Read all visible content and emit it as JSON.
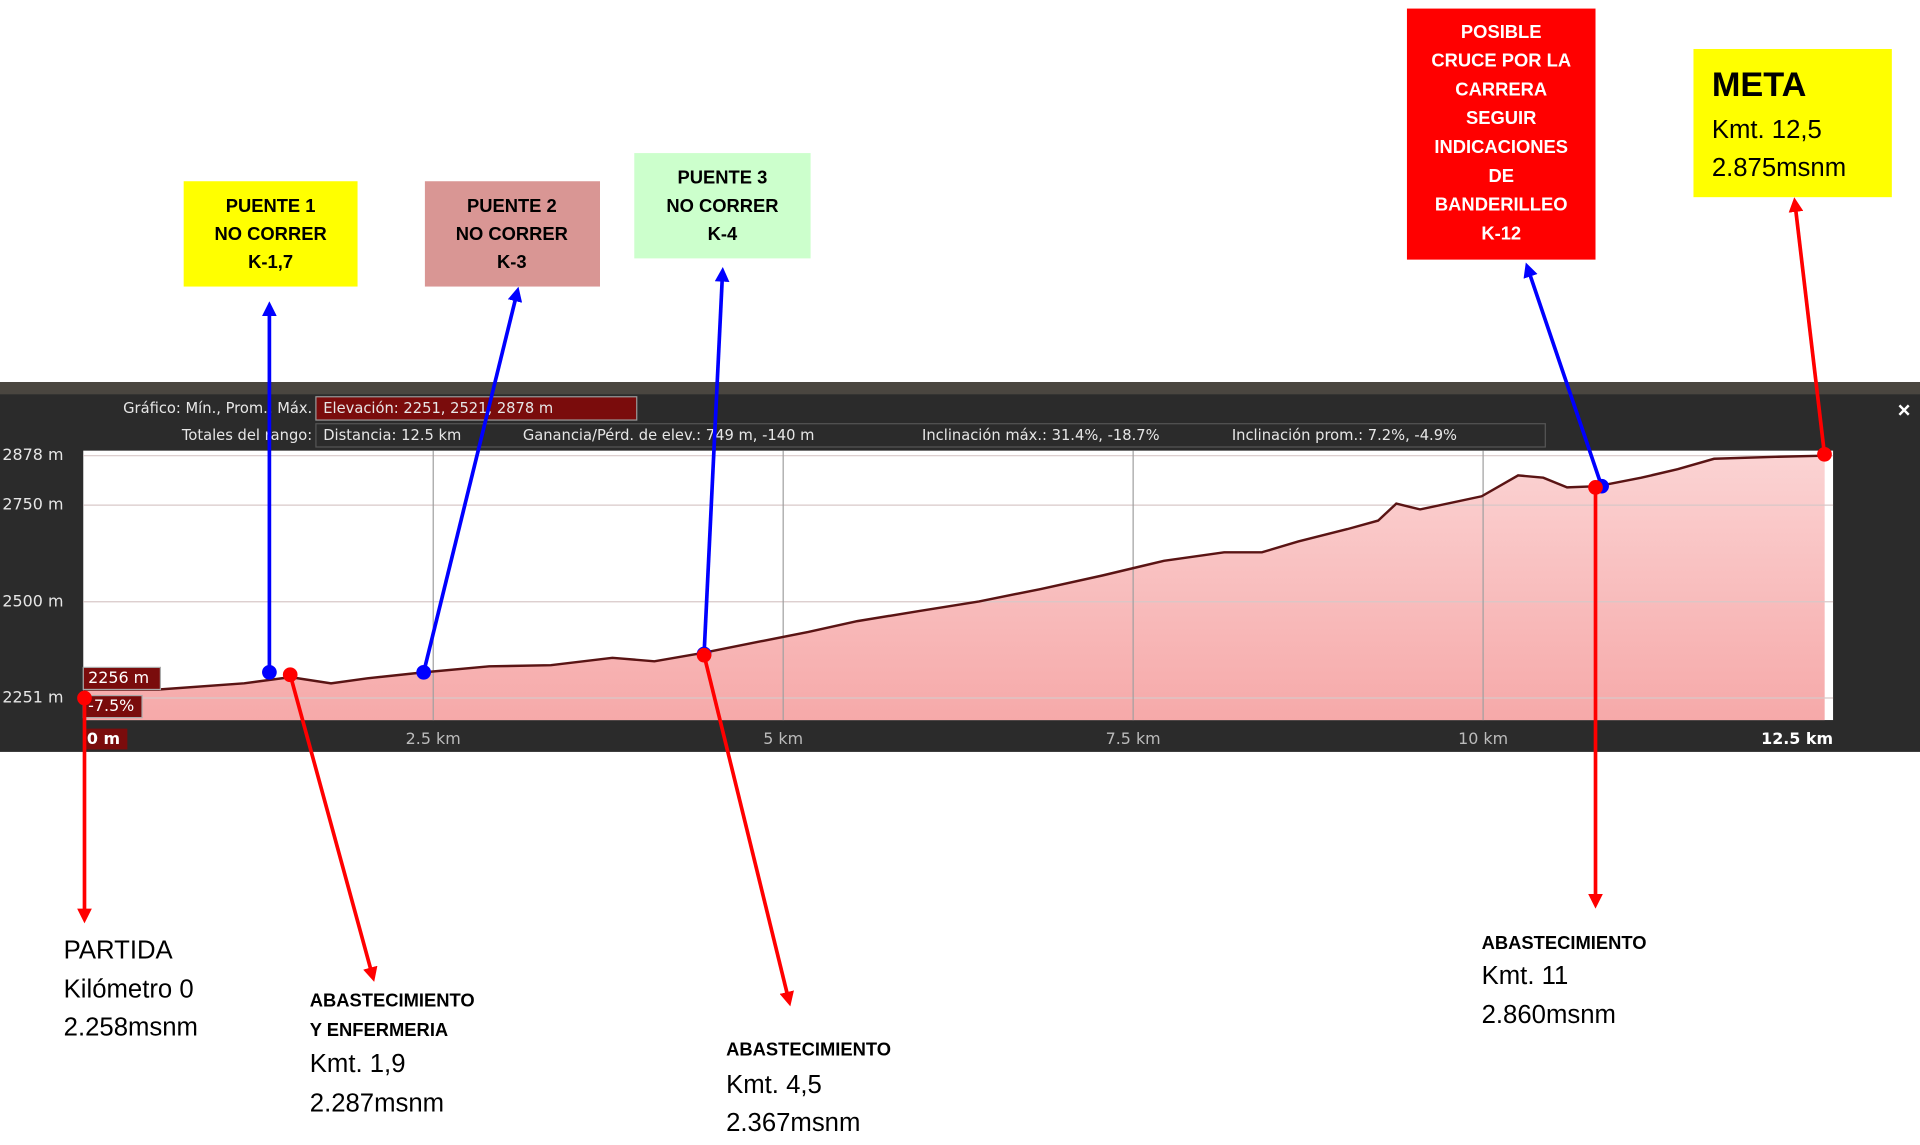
{
  "chart_data": {
    "type": "area",
    "summary_label": "Gráfico: Mín., Prom., Máx.",
    "elevation": "Elevación: 2251, 2521, 2878 m",
    "range_label": "Totales del rango:",
    "distance": "Distancia: 12.5 km",
    "gain": "Ganancia/Pérd. de elev.: 749 m, -140 m",
    "max_slope": "Inclinación máx.: 31.4%, -18.7%",
    "avg_slope": "Inclinación prom.: 7.2%, -4.9%",
    "cursor_elevation": "2256 m",
    "cursor_slope": "-7.5%",
    "close": "×",
    "x": [
      0,
      0.54,
      1.15,
      1.48,
      1.77,
      2.03,
      2.42,
      2.9,
      3.34,
      3.78,
      4.08,
      4.43,
      4.83,
      5.18,
      5.53,
      5.97,
      6.4,
      6.84,
      7.28,
      7.72,
      8.15,
      8.42,
      8.68,
      9.03,
      9.25,
      9.38,
      9.55,
      9.99,
      10.25,
      10.43,
      10.6,
      10.82,
      11.13,
      11.39,
      11.65,
      12.09,
      12.44
    ],
    "values": [
      2273,
      2273,
      2289,
      2305,
      2289,
      2302,
      2317,
      2333,
      2336,
      2355,
      2346,
      2368,
      2397,
      2422,
      2450,
      2476,
      2501,
      2533,
      2568,
      2606,
      2628,
      2628,
      2656,
      2688,
      2710,
      2754,
      2739,
      2773,
      2827,
      2821,
      2796,
      2799,
      2821,
      2843,
      2870,
      2875,
      2878
    ],
    "color": "#5a1414",
    "xlim": [
      0,
      12.5
    ],
    "ylim": [
      2194,
      2891
    ],
    "xticks": [
      {
        "value": 0,
        "label": "0 m"
      },
      {
        "value": 2.5,
        "label": "2.5 km"
      },
      {
        "value": 5,
        "label": "5 km"
      },
      {
        "value": 7.5,
        "label": "7.5 km"
      },
      {
        "value": 10,
        "label": "10 km"
      },
      {
        "value": 12.5,
        "label": "12.5 km"
      }
    ],
    "yticks": [
      {
        "value": 2251,
        "label": "2251 m"
      },
      {
        "value": 2500,
        "label": "2500 m"
      },
      {
        "value": 2750,
        "label": "2750 m"
      },
      {
        "value": 2878,
        "label": "2878 m"
      }
    ],
    "grid": true,
    "annotations": [
      {
        "lines": [
          "PUENTE 1",
          "NO CORRER",
          "K-1,7"
        ]
      },
      {
        "lines": [
          "PUENTE 2",
          "NO CORRER",
          "K-3"
        ]
      },
      {
        "lines": [
          "PUENTE 3",
          "NO CORRER",
          "K-4"
        ]
      },
      {
        "lines": [
          "POSIBLE",
          "CRUCE POR LA",
          "CARRERA",
          "SEGUIR",
          "INDICACIONES",
          "DE",
          "BANDERILLEO",
          "K-12"
        ]
      },
      {
        "lines": [
          "META",
          "Kmt.  12,5",
          "2.875msnm"
        ]
      },
      {
        "lines": [
          "PARTIDA",
          "Kilómetro 0",
          "2.258msnm"
        ]
      },
      {
        "lines": [
          "ABASTECIMIENTO",
          "Y ENFERMERIA",
          "Kmt.  1,9",
          "2.287msnm"
        ]
      },
      {
        "lines": [
          "ABASTECIMIENTO",
          "Kmt.  4,5",
          "2.367msnm"
        ]
      },
      {
        "lines": [
          "ABASTECIMIENTO",
          "Kmt.  11",
          "2.860msnm"
        ]
      }
    ]
  }
}
